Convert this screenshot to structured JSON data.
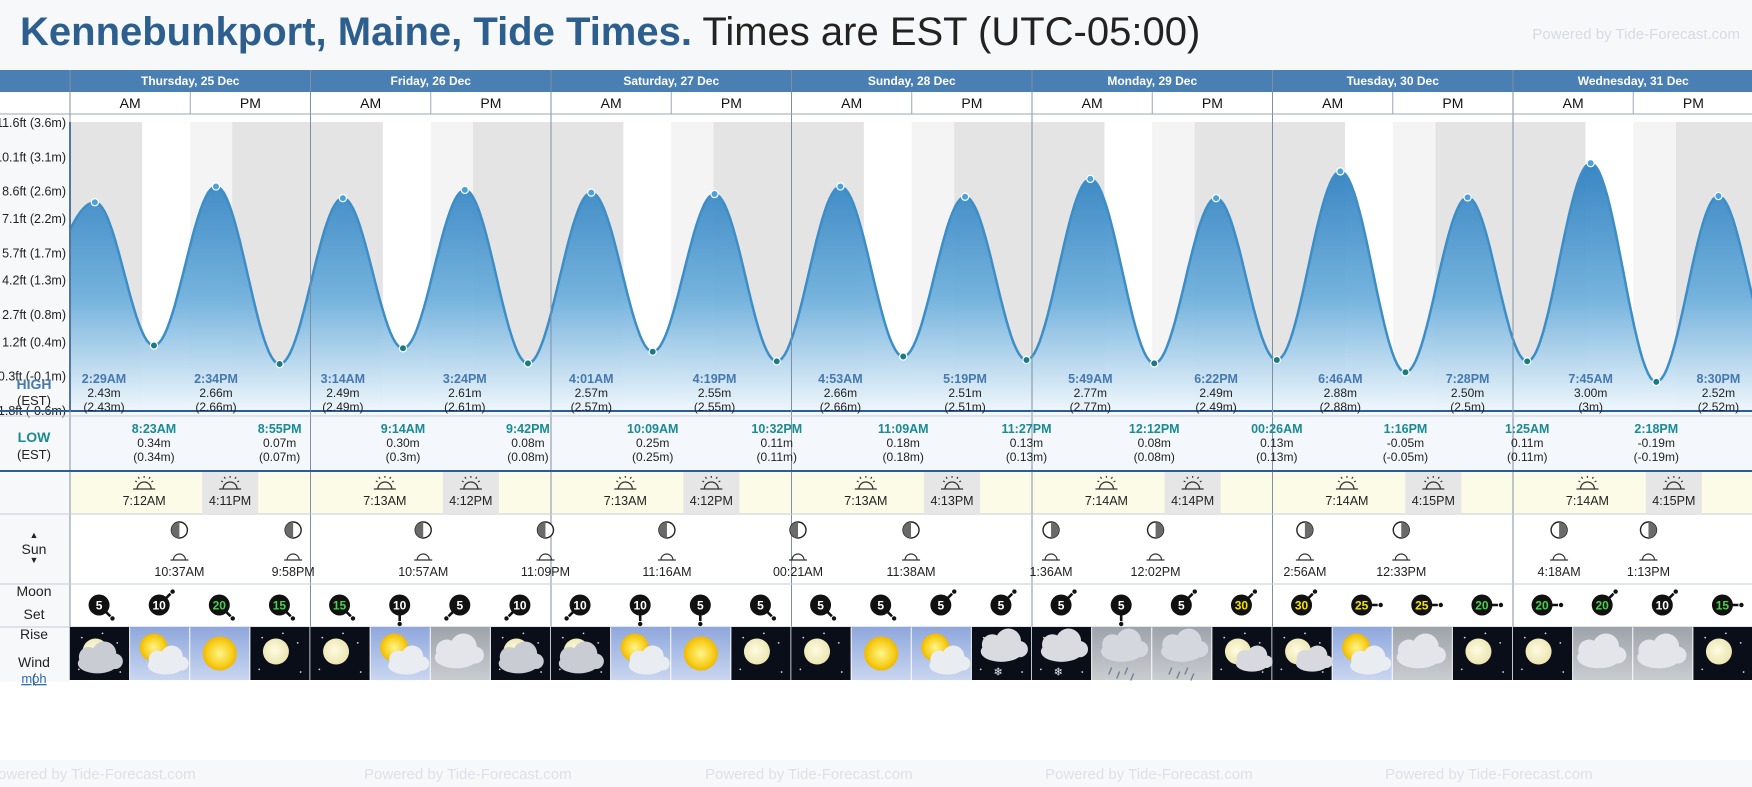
{
  "header": {
    "location": "Kennebunkport, Maine, Tide Times.",
    "timezone": "Times are EST (UTC-05:00)",
    "powered": "Powered by Tide-Forecast.com"
  },
  "footer": {
    "powered": "Powered by Tide-Forecast.com"
  },
  "colors": {
    "header_blue": "#4a7fb4",
    "tide_line": "#3d8ec6",
    "high_label": "#4679b0",
    "low_label": "#1a8a93",
    "night_shade": "#e4e4e4",
    "sun_bg": "#fcfbe8"
  },
  "labels": {
    "am": "AM",
    "pm": "PM",
    "high": "HIGH",
    "low": "LOW",
    "est": "(EST)",
    "sun": "Sun",
    "moon": "Moon",
    "set": "Set",
    "rise": "Rise",
    "wind": "Wind",
    "mph": "mph"
  },
  "chart_data": {
    "type": "area",
    "title": "Kennebunkport, Maine, Tide Times.",
    "units": "m",
    "ylim": [
      -0.6,
      3.6
    ],
    "y_ticks": [
      {
        "value": 3.6,
        "label": "11.6ft (3.6m)"
      },
      {
        "value": 3.1,
        "label": "10.1ft (3.1m)"
      },
      {
        "value": 2.6,
        "label": "8.6ft (2.6m)"
      },
      {
        "value": 2.2,
        "label": "7.1ft (2.2m)"
      },
      {
        "value": 1.7,
        "label": "5.7ft (1.7m)"
      },
      {
        "value": 1.3,
        "label": "4.2ft (1.3m)"
      },
      {
        "value": 0.8,
        "label": "2.7ft (0.8m)"
      },
      {
        "value": 0.4,
        "label": "1.2ft (0.4m)"
      },
      {
        "value": -0.1,
        "label": "-0.3ft (-0.1m)"
      },
      {
        "value": -0.6,
        "label": "-1.8ft (-0.6m)"
      }
    ],
    "days": [
      {
        "label": "Thursday, 25 Dec",
        "highs": [
          {
            "time": "2:29AM",
            "m": "2.43m",
            "alt": "(2.43m)",
            "hour": 2.48,
            "h": 2.43
          },
          {
            "time": "2:34PM",
            "m": "2.66m",
            "alt": "(2.66m)",
            "hour": 14.57,
            "h": 2.66
          }
        ],
        "lows": [
          {
            "time": "8:23AM",
            "m": "0.34m",
            "alt": "(0.34m)",
            "hour": 8.38,
            "h": 0.34
          },
          {
            "time": "8:55PM",
            "m": "0.07m",
            "alt": "(0.07m)",
            "hour": 20.92,
            "h": 0.07
          }
        ],
        "sunrise": "7:12AM",
        "sunset": "4:11PM",
        "sunrise_h": 7.2,
        "sunset_h": 16.18,
        "moon": [
          {
            "time": "10:37AM",
            "kind": "rise",
            "hour": 10.62
          },
          {
            "time": "9:58PM",
            "kind": "set",
            "hour": 21.97
          }
        ]
      },
      {
        "label": "Friday, 26 Dec",
        "highs": [
          {
            "time": "3:14AM",
            "m": "2.49m",
            "alt": "(2.49m)",
            "hour": 3.23,
            "h": 2.49
          },
          {
            "time": "3:24PM",
            "m": "2.61m",
            "alt": "(2.61m)",
            "hour": 15.4,
            "h": 2.61
          }
        ],
        "lows": [
          {
            "time": "9:14AM",
            "m": "0.30m",
            "alt": "(0.3m)",
            "hour": 9.23,
            "h": 0.3
          },
          {
            "time": "9:42PM",
            "m": "0.08m",
            "alt": "(0.08m)",
            "hour": 21.7,
            "h": 0.08
          }
        ],
        "sunrise": "7:13AM",
        "sunset": "4:12PM",
        "sunrise_h": 7.22,
        "sunset_h": 16.2,
        "moon": [
          {
            "time": "10:57AM",
            "kind": "rise",
            "hour": 10.95
          },
          {
            "time": "11:09PM",
            "kind": "set",
            "hour": 23.15
          }
        ]
      },
      {
        "label": "Saturday, 27 Dec",
        "highs": [
          {
            "time": "4:01AM",
            "m": "2.57m",
            "alt": "(2.57m)",
            "hour": 4.02,
            "h": 2.57
          },
          {
            "time": "4:19PM",
            "m": "2.55m",
            "alt": "(2.55m)",
            "hour": 16.32,
            "h": 2.55
          }
        ],
        "lows": [
          {
            "time": "10:09AM",
            "m": "0.25m",
            "alt": "(0.25m)",
            "hour": 10.15,
            "h": 0.25
          },
          {
            "time": "10:32PM",
            "m": "0.11m",
            "alt": "(0.11m)",
            "hour": 22.53,
            "h": 0.11
          }
        ],
        "sunrise": "7:13AM",
        "sunset": "4:12PM",
        "sunrise_h": 7.22,
        "sunset_h": 16.2,
        "moon": [
          {
            "time": "11:16AM",
            "kind": "rise",
            "hour": 11.27
          }
        ]
      },
      {
        "label": "Sunday, 28 Dec",
        "highs": [
          {
            "time": "4:53AM",
            "m": "2.66m",
            "alt": "(2.66m)",
            "hour": 4.88,
            "h": 2.66
          },
          {
            "time": "5:19PM",
            "m": "2.51m",
            "alt": "(2.51m)",
            "hour": 17.32,
            "h": 2.51
          }
        ],
        "lows": [
          {
            "time": "11:09AM",
            "m": "0.18m",
            "alt": "(0.18m)",
            "hour": 11.15,
            "h": 0.18
          },
          {
            "time": "11:27PM",
            "m": "0.13m",
            "alt": "(0.13m)",
            "hour": 23.45,
            "h": 0.13
          }
        ],
        "sunrise": "7:13AM",
        "sunset": "4:13PM",
        "sunrise_h": 7.22,
        "sunset_h": 16.22,
        "moon": [
          {
            "time": "00:21AM",
            "kind": "set",
            "hour": 0.35
          },
          {
            "time": "11:38AM",
            "kind": "rise",
            "hour": 11.63
          }
        ]
      },
      {
        "label": "Monday, 29 Dec",
        "highs": [
          {
            "time": "5:49AM",
            "m": "2.77m",
            "alt": "(2.77m)",
            "hour": 5.82,
            "h": 2.77
          },
          {
            "time": "6:22PM",
            "m": "2.49m",
            "alt": "(2.49m)",
            "hour": 18.37,
            "h": 2.49
          }
        ],
        "lows": [
          {
            "time": "12:12PM",
            "m": "0.08m",
            "alt": "(0.08m)",
            "hour": 12.2,
            "h": 0.08
          }
        ],
        "sunrise": "7:14AM",
        "sunset": "4:14PM",
        "sunrise_h": 7.23,
        "sunset_h": 16.23,
        "moon": [
          {
            "time": "1:36AM",
            "kind": "set",
            "hour": 1.6
          },
          {
            "time": "12:02PM",
            "kind": "rise",
            "hour": 12.03
          }
        ]
      },
      {
        "label": "Tuesday, 30 Dec",
        "highs": [
          {
            "time": "6:46AM",
            "m": "2.88m",
            "alt": "(2.88m)",
            "hour": 6.77,
            "h": 2.88
          },
          {
            "time": "7:28PM",
            "m": "2.50m",
            "alt": "(2.5m)",
            "hour": 19.47,
            "h": 2.5
          }
        ],
        "lows": [
          {
            "time": "00:26AM",
            "m": "0.13m",
            "alt": "(0.13m)",
            "hour": 0.43,
            "h": 0.13
          },
          {
            "time": "1:16PM",
            "m": "-0.05m",
            "alt": "(-0.05m)",
            "hour": 13.27,
            "h": -0.05
          }
        ],
        "sunrise": "7:14AM",
        "sunset": "4:15PM",
        "sunrise_h": 7.23,
        "sunset_h": 16.25,
        "moon": [
          {
            "time": "2:56AM",
            "kind": "set",
            "hour": 2.93
          },
          {
            "time": "12:33PM",
            "kind": "rise",
            "hour": 12.55
          }
        ]
      },
      {
        "label": "Wednesday, 31 Dec",
        "highs": [
          {
            "time": "7:45AM",
            "m": "3.00m",
            "alt": "(3m)",
            "hour": 7.75,
            "h": 3.0
          },
          {
            "time": "8:30PM",
            "m": "2.52m",
            "alt": "(2.52m)",
            "hour": 20.5,
            "h": 2.52
          }
        ],
        "lows": [
          {
            "time": "1:25AM",
            "m": "0.11m",
            "alt": "(0.11m)",
            "hour": 1.42,
            "h": 0.11
          },
          {
            "time": "2:18PM",
            "m": "-0.19m",
            "alt": "(-0.19m)",
            "hour": 14.3,
            "h": -0.19
          }
        ],
        "sunrise": "7:14AM",
        "sunset": "4:15PM",
        "sunrise_h": 7.23,
        "sunset_h": 16.25,
        "moon": [
          {
            "time": "4:18AM",
            "kind": "set",
            "hour": 4.3
          },
          {
            "time": "1:13PM",
            "kind": "rise",
            "hour": 13.22
          }
        ]
      }
    ],
    "wind": [
      {
        "speed": "5",
        "dir": 135
      },
      {
        "speed": "10",
        "dir": 45
      },
      {
        "speed": "20",
        "dir": 135
      },
      {
        "speed": "15",
        "dir": 135
      },
      {
        "speed": "15",
        "dir": 135
      },
      {
        "speed": "10",
        "dir": 180
      },
      {
        "speed": "5",
        "dir": 225
      },
      {
        "speed": "10",
        "dir": 225
      },
      {
        "speed": "10",
        "dir": 225
      },
      {
        "speed": "10",
        "dir": 180
      },
      {
        "speed": "5",
        "dir": 180
      },
      {
        "speed": "5",
        "dir": 135
      },
      {
        "speed": "5",
        "dir": 135
      },
      {
        "speed": "5",
        "dir": 135
      },
      {
        "speed": "5",
        "dir": 45
      },
      {
        "speed": "5",
        "dir": 45
      },
      {
        "speed": "5",
        "dir": 45
      },
      {
        "speed": "5",
        "dir": 180
      },
      {
        "speed": "5",
        "dir": 45
      },
      {
        "speed": "30",
        "dir": 45
      },
      {
        "speed": "30",
        "dir": 45
      },
      {
        "speed": "25",
        "dir": 90
      },
      {
        "speed": "25",
        "dir": 90
      },
      {
        "speed": "20",
        "dir": 90
      },
      {
        "speed": "20",
        "dir": 90
      },
      {
        "speed": "20",
        "dir": 45
      },
      {
        "speed": "10",
        "dir": 45
      },
      {
        "speed": "15",
        "dir": 90
      }
    ],
    "wind_colors": {
      "5": "#ffffff",
      "10": "#ffffff",
      "15": "#43d34a",
      "20": "#43d34a",
      "25": "#f2e200",
      "30": "#f2e200"
    },
    "weather": [
      "night-cloud",
      "day-partly-cloudy",
      "day-sunny",
      "night-clear",
      "night-clear",
      "day-partly-cloudy",
      "day-cloudy",
      "night-cloud",
      "night-cloud",
      "day-partly-cloudy",
      "day-sunny",
      "night-clear",
      "night-clear",
      "day-sunny",
      "day-partly-cloudy",
      "night-snow",
      "night-snow",
      "day-rain",
      "day-rain",
      "night-partly-cloudy",
      "night-partly-cloudy",
      "day-partly-cloudy",
      "day-cloudy",
      "night-clear",
      "night-clear",
      "day-cloudy",
      "day-cloudy",
      "night-clear"
    ]
  }
}
